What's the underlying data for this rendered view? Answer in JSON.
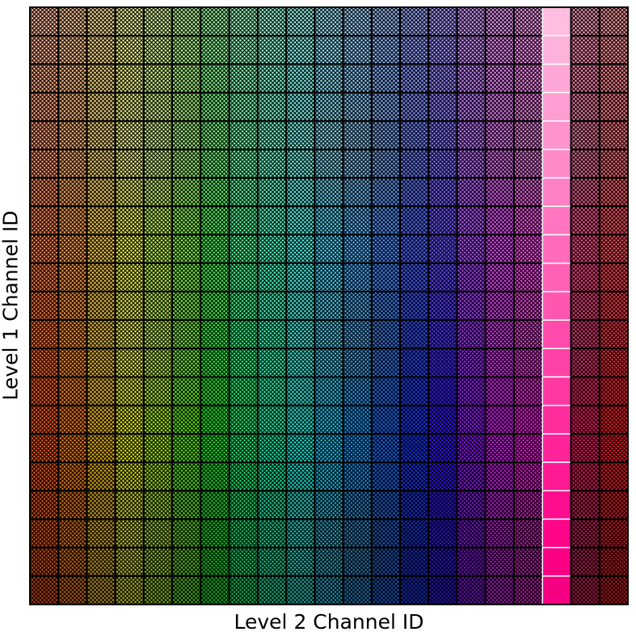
{
  "chart_data": {
    "type": "heatmap",
    "title": "",
    "xlabel": "Level 2 Channel ID",
    "ylabel": "Level 1 Channel ID",
    "n_cols": 21,
    "n_rows": 21,
    "highlight_col": 18,
    "tick_labels": "none",
    "grid": "on",
    "cell_pattern": "cross-hatch",
    "hue_by_col": [
      18,
      28,
      45,
      62,
      80,
      100,
      125,
      145,
      160,
      175,
      192,
      205,
      218,
      232,
      248,
      272,
      292,
      305,
      325,
      340,
      355
    ],
    "lightness_top_to_bottom": [
      0.78,
      0.75,
      0.73,
      0.71,
      0.69,
      0.67,
      0.65,
      0.63,
      0.61,
      0.59,
      0.57,
      0.55,
      0.53,
      0.51,
      0.49,
      0.47,
      0.45,
      0.43,
      0.41,
      0.39,
      0.37
    ],
    "highlight_lightness_top_to_bottom": [
      0.87,
      0.85,
      0.83,
      0.81,
      0.79,
      0.77,
      0.75,
      0.73,
      0.71,
      0.69,
      0.67,
      0.65,
      0.63,
      0.61,
      0.59,
      0.57,
      0.55,
      0.53,
      0.51,
      0.49,
      0.48
    ],
    "colors": {
      "grid": "#000000",
      "highlight_hue": 328,
      "highlight_separator": "#ffffff"
    }
  }
}
